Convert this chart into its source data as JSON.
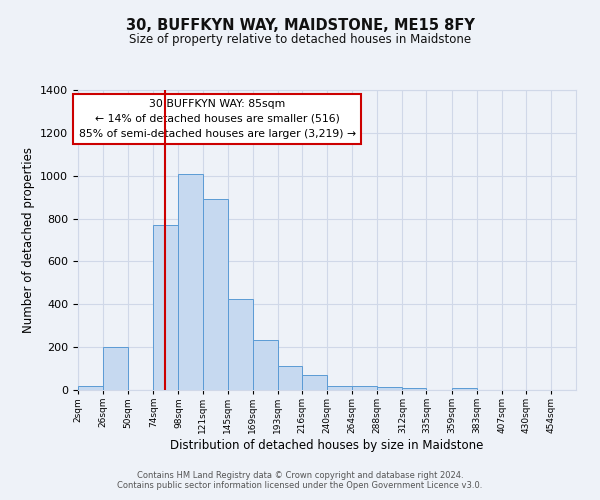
{
  "title": "30, BUFFKYN WAY, MAIDSTONE, ME15 8FY",
  "subtitle": "Size of property relative to detached houses in Maidstone",
  "xlabel": "Distribution of detached houses by size in Maidstone",
  "ylabel": "Number of detached properties",
  "bar_color": "#c6d9f0",
  "bar_edge_color": "#5b9bd5",
  "grid_color": "#d0d8e8",
  "bg_color": "#eef2f8",
  "vline_x": 85,
  "vline_color": "#cc0000",
  "annotation_text": "30 BUFFKYN WAY: 85sqm\n← 14% of detached houses are smaller (516)\n85% of semi-detached houses are larger (3,219) →",
  "annotation_box_color": "#ffffff",
  "annotation_box_edge": "#cc0000",
  "bin_edges": [
    2,
    26,
    50,
    74,
    98,
    121,
    145,
    169,
    193,
    216,
    240,
    264,
    288,
    312,
    335,
    359,
    383,
    407,
    430,
    454,
    478
  ],
  "bar_heights": [
    20,
    200,
    0,
    770,
    1010,
    890,
    425,
    235,
    110,
    70,
    20,
    20,
    15,
    10,
    0,
    10,
    0,
    0,
    0,
    0
  ],
  "ylim": [
    0,
    1400
  ],
  "yticks": [
    0,
    200,
    400,
    600,
    800,
    1000,
    1200,
    1400
  ],
  "footer_line1": "Contains HM Land Registry data © Crown copyright and database right 2024.",
  "footer_line2": "Contains public sector information licensed under the Open Government Licence v3.0."
}
